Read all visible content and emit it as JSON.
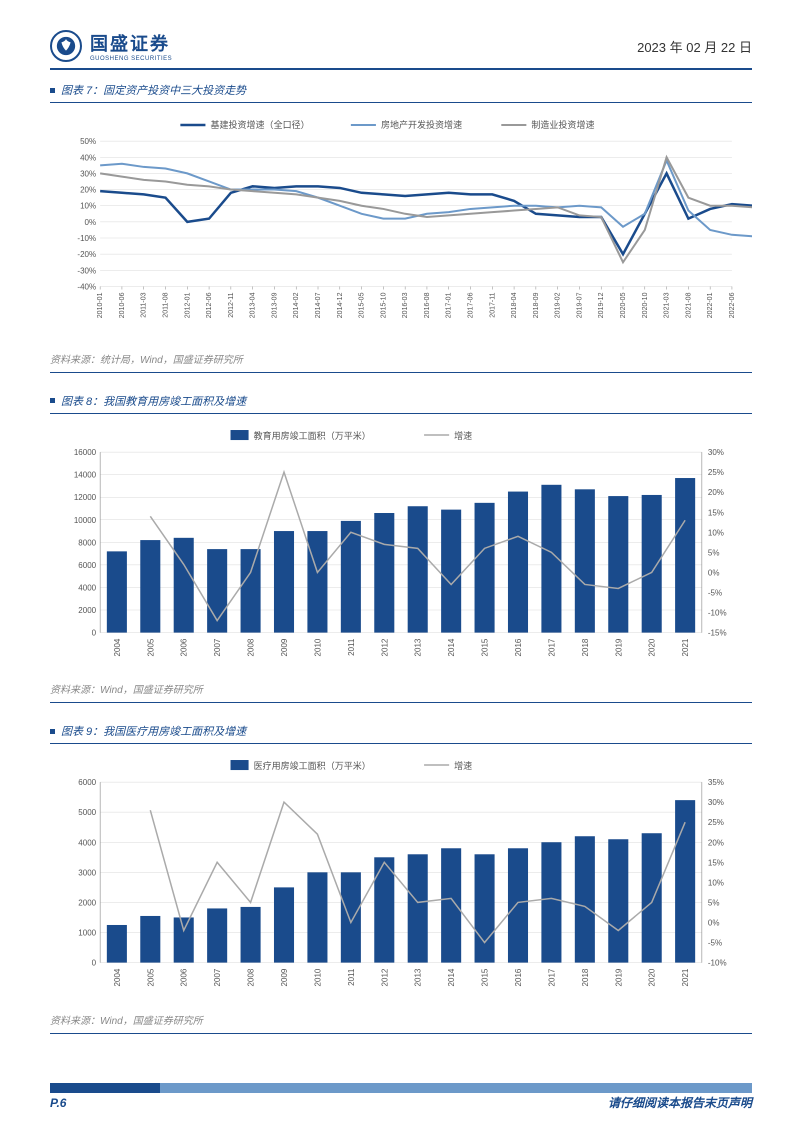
{
  "header": {
    "brand_main": "国盛证券",
    "brand_sub": "GUOSHENG SECURITIES",
    "date": "2023 年 02 月 22 日"
  },
  "footer": {
    "page_label": "P.6",
    "disclaimer": "请仔细阅读本报告末页声明"
  },
  "chart7": {
    "type": "line",
    "title": "图表 7：固定资产投资中三大投资走势",
    "source": "资料来源：统计局，Wind，国盛证券研究所",
    "legend": [
      {
        "label": "基建投资增速（全口径）",
        "color": "#1a4b8c",
        "width": 2.5
      },
      {
        "label": "房地产开发投资增速",
        "color": "#6c99c9",
        "width": 2
      },
      {
        "label": "制造业投资增速",
        "color": "#999999",
        "width": 2
      }
    ],
    "x_labels": [
      "2010-01",
      "2010-06",
      "2011-03",
      "2011-08",
      "2012-01",
      "2012-06",
      "2012-11",
      "2013-04",
      "2013-09",
      "2014-02",
      "2014-07",
      "2014-12",
      "2015-05",
      "2015-10",
      "2016-03",
      "2016-08",
      "2017-01",
      "2017-06",
      "2017-11",
      "2018-04",
      "2018-09",
      "2019-02",
      "2019-07",
      "2019-12",
      "2020-05",
      "2020-10",
      "2021-03",
      "2021-08",
      "2022-01",
      "2022-06"
    ],
    "ylim": [
      -40,
      50
    ],
    "ytick_step": 10,
    "grid_color": "#d9d9d9",
    "background_color": "#ffffff",
    "axis_fontsize": 8,
    "series": {
      "infra": [
        19,
        18,
        17,
        15,
        0,
        2,
        18,
        22,
        21,
        22,
        22,
        21,
        18,
        17,
        16,
        17,
        18,
        17,
        17,
        13,
        5,
        4,
        3,
        3,
        -20,
        5,
        30,
        2,
        8,
        11,
        10
      ],
      "realty": [
        35,
        36,
        34,
        33,
        30,
        25,
        20,
        20,
        20,
        19,
        15,
        10,
        5,
        2,
        2,
        5,
        6,
        8,
        9,
        10,
        10,
        9,
        10,
        9,
        -3,
        5,
        38,
        7,
        -5,
        -8,
        -9
      ],
      "mfg": [
        30,
        28,
        26,
        25,
        23,
        22,
        20,
        19,
        18,
        17,
        15,
        13,
        10,
        8,
        5,
        3,
        4,
        5,
        6,
        7,
        8,
        9,
        4,
        3,
        -25,
        -5,
        40,
        15,
        10,
        10,
        9
      ]
    }
  },
  "chart8": {
    "type": "bar-line",
    "title": "图表 8：我国教育用房竣工面积及增速",
    "source": "资料来源：Wind，国盛证券研究所",
    "legend": [
      {
        "label": "教育用房竣工面积（万平米）",
        "color": "#1a4b8c",
        "kind": "bar"
      },
      {
        "label": "增速",
        "color": "#aaaaaa",
        "kind": "line"
      }
    ],
    "x_labels": [
      "2004",
      "2005",
      "2006",
      "2007",
      "2008",
      "2009",
      "2010",
      "2011",
      "2012",
      "2013",
      "2014",
      "2015",
      "2016",
      "2017",
      "2018",
      "2019",
      "2020",
      "2021"
    ],
    "y1": {
      "lim": [
        0,
        16000
      ],
      "step": 2000
    },
    "y2": {
      "lim": [
        -15,
        30
      ],
      "step": 5,
      "format": "pct"
    },
    "bar_color": "#1a4b8c",
    "line_color": "#aaaaaa",
    "grid_color": "#d9d9d9",
    "bars": [
      7200,
      8200,
      8400,
      7400,
      7400,
      9000,
      9000,
      9900,
      10600,
      11200,
      10900,
      11500,
      12500,
      13100,
      12700,
      12100,
      12200,
      13700
    ],
    "growth": [
      null,
      14,
      2,
      -12,
      0,
      25,
      0,
      10,
      7,
      6,
      -3,
      6,
      9,
      5,
      -3,
      -4,
      0,
      13
    ]
  },
  "chart9": {
    "type": "bar-line",
    "title": "图表 9：我国医疗用房竣工面积及增速",
    "source": "资料来源：Wind，国盛证券研究所",
    "legend": [
      {
        "label": "医疗用房竣工面积（万平米）",
        "color": "#1a4b8c",
        "kind": "bar"
      },
      {
        "label": "增速",
        "color": "#aaaaaa",
        "kind": "line"
      }
    ],
    "x_labels": [
      "2004",
      "2005",
      "2006",
      "2007",
      "2008",
      "2009",
      "2010",
      "2011",
      "2012",
      "2013",
      "2014",
      "2015",
      "2016",
      "2017",
      "2018",
      "2019",
      "2020",
      "2021"
    ],
    "y1": {
      "lim": [
        0,
        6000
      ],
      "step": 1000
    },
    "y2": {
      "lim": [
        -10,
        35
      ],
      "step": 5,
      "format": "pct"
    },
    "bar_color": "#1a4b8c",
    "line_color": "#aaaaaa",
    "grid_color": "#d9d9d9",
    "bars": [
      1250,
      1550,
      1500,
      1800,
      1850,
      2500,
      3000,
      3000,
      3500,
      3600,
      3800,
      3600,
      3800,
      4000,
      4200,
      4100,
      4300,
      5400
    ],
    "growth": [
      null,
      28,
      -2,
      15,
      5,
      30,
      22,
      0,
      15,
      5,
      6,
      -5,
      5,
      6,
      4,
      -2,
      5,
      25
    ]
  },
  "colors": {
    "brand": "#1a4b8c",
    "brand_light": "#6c99c9",
    "text": "#333333",
    "muted": "#888888"
  }
}
